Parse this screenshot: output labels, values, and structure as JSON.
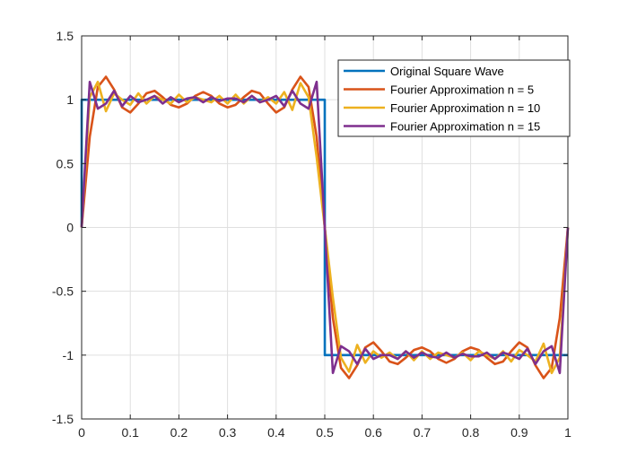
{
  "chart_data": {
    "type": "line",
    "title": "",
    "xlabel": "",
    "ylabel": "",
    "xlim": [
      0,
      1
    ],
    "ylim": [
      -1.5,
      1.5
    ],
    "xticks": [
      0,
      0.1,
      0.2,
      0.3,
      0.4,
      0.5,
      0.6,
      0.7,
      0.8,
      0.9,
      1
    ],
    "xtick_labels": [
      "0",
      "0.1",
      "0.2",
      "0.3",
      "0.4",
      "0.5",
      "0.6",
      "0.7",
      "0.8",
      "0.9",
      "1"
    ],
    "yticks": [
      -1.5,
      -1,
      -0.5,
      0,
      0.5,
      1,
      1.5
    ],
    "ytick_labels": [
      "-1.5",
      "-1",
      "-0.5",
      "0",
      "0.5",
      "1",
      "1.5"
    ],
    "grid": true,
    "legend_position": "top-right",
    "series": [
      {
        "name": "Original Square Wave",
        "color": "#0072BD",
        "x": [
          0,
          0.0001,
          0.5,
          0.5001,
          1
        ],
        "y": [
          0,
          1,
          1,
          -1,
          -1
        ]
      },
      {
        "name": "Fourier Approximation n = 5",
        "color": "#D95319",
        "x": [
          0,
          0.0167,
          0.0333,
          0.05,
          0.0667,
          0.0833,
          0.1,
          0.1167,
          0.1333,
          0.15,
          0.1667,
          0.1833,
          0.2,
          0.2167,
          0.2333,
          0.25,
          0.2667,
          0.2833,
          0.3,
          0.3167,
          0.3333,
          0.35,
          0.3667,
          0.3833,
          0.4,
          0.4167,
          0.4333,
          0.45,
          0.4667,
          0.4833,
          0.5,
          0.5167,
          0.5333,
          0.55,
          0.5667,
          0.5833,
          0.6,
          0.6167,
          0.6333,
          0.65,
          0.6667,
          0.6833,
          0.7,
          0.7167,
          0.7333,
          0.75,
          0.7667,
          0.7833,
          0.8,
          0.8167,
          0.8333,
          0.85,
          0.8667,
          0.8833,
          0.9,
          0.9167,
          0.9333,
          0.95,
          0.9667,
          0.9833,
          1
        ],
        "y": [
          0,
          0.71,
          1.1,
          1.18,
          1.08,
          0.94,
          0.9,
          0.97,
          1.05,
          1.07,
          1.02,
          0.96,
          0.94,
          0.97,
          1.03,
          1.06,
          1.03,
          0.97,
          0.94,
          0.96,
          1.02,
          1.07,
          1.05,
          0.97,
          0.9,
          0.94,
          1.08,
          1.18,
          1.1,
          0.71,
          0,
          -0.71,
          -1.1,
          -1.18,
          -1.08,
          -0.94,
          -0.9,
          -0.97,
          -1.05,
          -1.07,
          -1.02,
          -0.96,
          -0.94,
          -0.97,
          -1.03,
          -1.06,
          -1.03,
          -0.97,
          -0.94,
          -0.96,
          -1.02,
          -1.07,
          -1.05,
          -0.97,
          -0.9,
          -0.94,
          -1.08,
          -1.18,
          -1.1,
          -0.71,
          0
        ]
      },
      {
        "name": "Fourier Approximation n = 10",
        "color": "#EDB120",
        "x": [
          0,
          0.0167,
          0.0333,
          0.05,
          0.0667,
          0.0833,
          0.1,
          0.1167,
          0.1333,
          0.15,
          0.1667,
          0.1833,
          0.2,
          0.2167,
          0.2333,
          0.25,
          0.2667,
          0.2833,
          0.3,
          0.3167,
          0.3333,
          0.35,
          0.3667,
          0.3833,
          0.4,
          0.4167,
          0.4333,
          0.45,
          0.4667,
          0.4833,
          0.5,
          0.5167,
          0.5333,
          0.55,
          0.5667,
          0.5833,
          0.6,
          0.6167,
          0.6333,
          0.65,
          0.6667,
          0.6833,
          0.7,
          0.7167,
          0.7333,
          0.75,
          0.7667,
          0.7833,
          0.8,
          0.8167,
          0.8333,
          0.85,
          0.8667,
          0.8833,
          0.9,
          0.9167,
          0.9333,
          0.95,
          0.9667,
          0.9833,
          1
        ],
        "y": [
          0,
          1.02,
          1.14,
          0.91,
          1.05,
          1.0,
          0.96,
          1.05,
          0.97,
          1.03,
          1.0,
          0.97,
          1.04,
          0.98,
          1.02,
          1.0,
          0.98,
          1.03,
          0.97,
          1.04,
          0.97,
          1.03,
          0.98,
          1.02,
          0.97,
          1.06,
          0.92,
          1.13,
          1.02,
          0.55,
          0,
          -0.55,
          -1.02,
          -1.13,
          -0.92,
          -1.06,
          -0.97,
          -1.02,
          -0.98,
          -1.03,
          -0.97,
          -1.04,
          -0.97,
          -1.03,
          -0.98,
          -1.0,
          -1.02,
          -0.98,
          -1.04,
          -0.97,
          -1.0,
          -1.03,
          -0.97,
          -1.05,
          -0.96,
          -1.0,
          -1.05,
          -0.91,
          -1.14,
          -1.02,
          0
        ]
      },
      {
        "name": "Fourier Approximation n = 15",
        "color": "#7E2F8E",
        "x": [
          0,
          0.0167,
          0.0333,
          0.05,
          0.0667,
          0.0833,
          0.1,
          0.1167,
          0.1333,
          0.15,
          0.1667,
          0.1833,
          0.2,
          0.2167,
          0.2333,
          0.25,
          0.2667,
          0.2833,
          0.3,
          0.3167,
          0.3333,
          0.35,
          0.3667,
          0.3833,
          0.4,
          0.4167,
          0.4333,
          0.45,
          0.4667,
          0.4833,
          0.5,
          0.5167,
          0.5333,
          0.55,
          0.5667,
          0.5833,
          0.6,
          0.6167,
          0.6333,
          0.65,
          0.6667,
          0.6833,
          0.7,
          0.7167,
          0.7333,
          0.75,
          0.7667,
          0.7833,
          0.8,
          0.8167,
          0.8333,
          0.85,
          0.8667,
          0.8833,
          0.9,
          0.9167,
          0.9333,
          0.95,
          0.9667,
          0.9833,
          1
        ],
        "y": [
          0,
          1.14,
          0.93,
          0.97,
          1.07,
          0.95,
          1.03,
          0.98,
          1.0,
          1.03,
          0.97,
          1.02,
          0.98,
          1.01,
          1.02,
          0.98,
          1.02,
          0.99,
          1.01,
          1.01,
          0.98,
          1.03,
          0.98,
          1.0,
          1.03,
          0.95,
          1.07,
          0.97,
          0.93,
          1.14,
          0,
          -1.14,
          -0.93,
          -0.97,
          -1.07,
          -0.95,
          -1.03,
          -1.0,
          -1.0,
          -1.03,
          -0.97,
          -1.02,
          -0.98,
          -1.01,
          -1.02,
          -0.98,
          -1.02,
          -0.99,
          -1.01,
          -1.01,
          -0.98,
          -1.03,
          -0.98,
          -1.0,
          -1.03,
          -0.95,
          -1.07,
          -0.97,
          -0.93,
          -1.14,
          0
        ]
      }
    ]
  },
  "colors": {
    "axes_color": "#262626",
    "grid_color": "#dfdfdf",
    "background": "#ffffff"
  }
}
